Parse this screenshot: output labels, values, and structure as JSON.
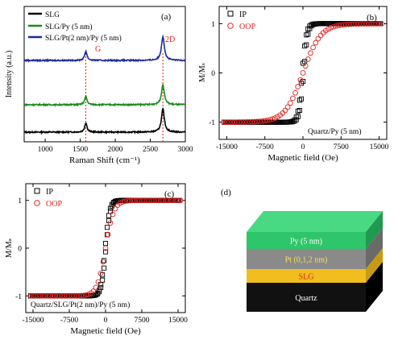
{
  "panels": {
    "a": {
      "letter": "(a)"
    },
    "b": {
      "letter": "(b)",
      "annotation": "Quartz/Py (5 nm)"
    },
    "c": {
      "letter": "(c)",
      "annotation": "Quartz/SLG/Pt(2 nm)/Py (5 nm)"
    },
    "d": {
      "letter": "(d)",
      "layers": [
        {
          "label": "Py (5 nm)",
          "color": "#2fc56a",
          "side": "#1f9a50",
          "text_color": "#ffffff"
        },
        {
          "label": "Pt (0,1,2  nm)",
          "color": "#8a8a8a",
          "side": "#6a6a6a",
          "text_color": "#f4e04d"
        },
        {
          "label": "SLG",
          "color": "#f2bd1e",
          "side": "#c89a12",
          "text_color": "#e0281c"
        },
        {
          "label": "Quartz",
          "color": "#111111",
          "side": "#000000",
          "text_color": "#ffffff"
        }
      ],
      "top_color": "#49d983"
    }
  },
  "chart_data": [
    {
      "type": "line",
      "panel": "a",
      "xlabel": "Raman Shift (cm⁻¹)",
      "ylabel": "Intensity (a.u.)",
      "xlim": [
        700,
        3000
      ],
      "xticks": [
        1000,
        1500,
        2000,
        2500,
        3000
      ],
      "yticks": [],
      "series": [
        {
          "name": "SLG",
          "color": "#000000",
          "offset": 0,
          "peaks": [
            {
              "x": 1580,
              "h": 0.9,
              "w": 20
            },
            {
              "x": 2680,
              "h": 2.2,
              "w": 25
            }
          ]
        },
        {
          "name": "SLG/Py (5 nm)",
          "color": "#1a8c1a",
          "offset": 1.8,
          "peaks": [
            {
              "x": 1580,
              "h": 0.8,
              "w": 20
            },
            {
              "x": 2680,
              "h": 1.9,
              "w": 25
            }
          ]
        },
        {
          "name": "SLG/Pt(2 nm)/Py (5 nm)",
          "color": "#1c2a9c",
          "offset": 3.8,
          "peaks": [
            {
              "x": 1580,
              "h": 0.9,
              "w": 20
            },
            {
              "x": 2680,
              "h": 2.3,
              "w": 25
            }
          ]
        }
      ],
      "annotations": [
        {
          "text": "G",
          "x": 1620,
          "color": "#e02020"
        },
        {
          "text": "2D",
          "x": 2740,
          "color": "#e02020"
        }
      ],
      "dashed_lines": [
        1580,
        2680
      ]
    },
    {
      "type": "scatter",
      "panel": "b",
      "xlabel": "Magnetic field (Oe)",
      "ylabel": "M/Mₛ",
      "xlim": [
        -16500,
        16500
      ],
      "ylim": [
        -1.35,
        1.35
      ],
      "xticks": [
        -15000,
        -7500,
        0,
        7500,
        15000
      ],
      "yticks": [
        -1,
        0,
        1
      ],
      "series": [
        {
          "name": "IP",
          "marker": "square",
          "color": "#000000",
          "model": "hysteresis",
          "hc": 150,
          "width": 800
        },
        {
          "name": "OOP",
          "marker": "circle",
          "color": "#e02020",
          "model": "tanh",
          "hc": 0,
          "width": 3500
        }
      ]
    },
    {
      "type": "scatter",
      "panel": "c",
      "xlabel": "Magnetic field (Oe)",
      "ylabel": "M/Mₛ",
      "xlim": [
        -16500,
        16500
      ],
      "ylim": [
        -1.35,
        1.35
      ],
      "xticks": [
        -15000,
        -7500,
        0,
        7500,
        15000
      ],
      "yticks": [
        -1,
        0,
        1
      ],
      "series": [
        {
          "name": "IP",
          "marker": "square",
          "color": "#000000",
          "model": "tanh",
          "hc": 80,
          "width": 900
        },
        {
          "name": "OOP",
          "marker": "circle",
          "color": "#e02020",
          "model": "tanh",
          "hc": 0,
          "width": 1700
        }
      ]
    }
  ]
}
